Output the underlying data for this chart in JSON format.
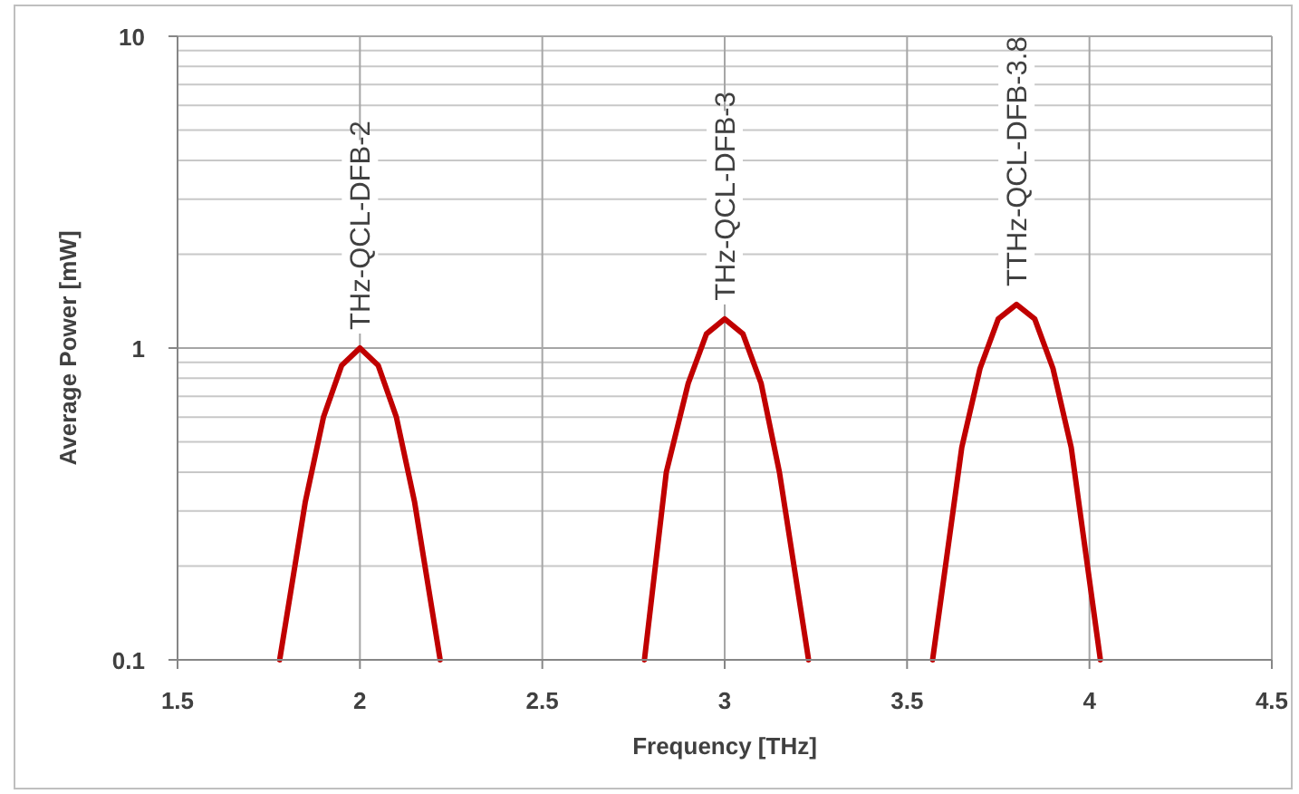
{
  "chart_data": {
    "type": "line",
    "xlabel": "Frequency [THz]",
    "ylabel": "Average Power [mW]",
    "xlim": [
      1.5,
      4.5
    ],
    "xticks": [
      1.5,
      2,
      2.5,
      3,
      3.5,
      4,
      4.5
    ],
    "ylim": [
      0.1,
      10
    ],
    "yticks": [
      0.1,
      1,
      10
    ],
    "log": "y",
    "grid": true,
    "marker": "none",
    "line_style": "solid",
    "series": [
      {
        "name": "THz-QCL-DFB-2",
        "color": "#c00000",
        "x": [
          1.78,
          1.85,
          1.9,
          1.95,
          2,
          2.05,
          2.1,
          2.15,
          2.22
        ],
        "values": [
          0.1,
          0.32,
          0.6,
          0.88,
          1.0,
          0.88,
          0.6,
          0.32,
          0.1
        ]
      },
      {
        "name": "THz-QCL-DFB-3",
        "color": "#c00000",
        "x": [
          2.78,
          2.84,
          2.9,
          2.95,
          3,
          3.05,
          3.1,
          3.15,
          3.23
        ],
        "values": [
          0.1,
          0.4,
          0.77,
          1.11,
          1.24,
          1.11,
          0.77,
          0.4,
          0.1
        ]
      },
      {
        "name": "TTHz-QCL-DFB-3.8",
        "color": "#c00000",
        "x": [
          3.57,
          3.65,
          3.7,
          3.75,
          3.8,
          3.85,
          3.9,
          3.95,
          4.03
        ],
        "values": [
          0.1,
          0.48,
          0.86,
          1.24,
          1.38,
          1.24,
          0.86,
          0.48,
          0.1
        ]
      }
    ]
  }
}
